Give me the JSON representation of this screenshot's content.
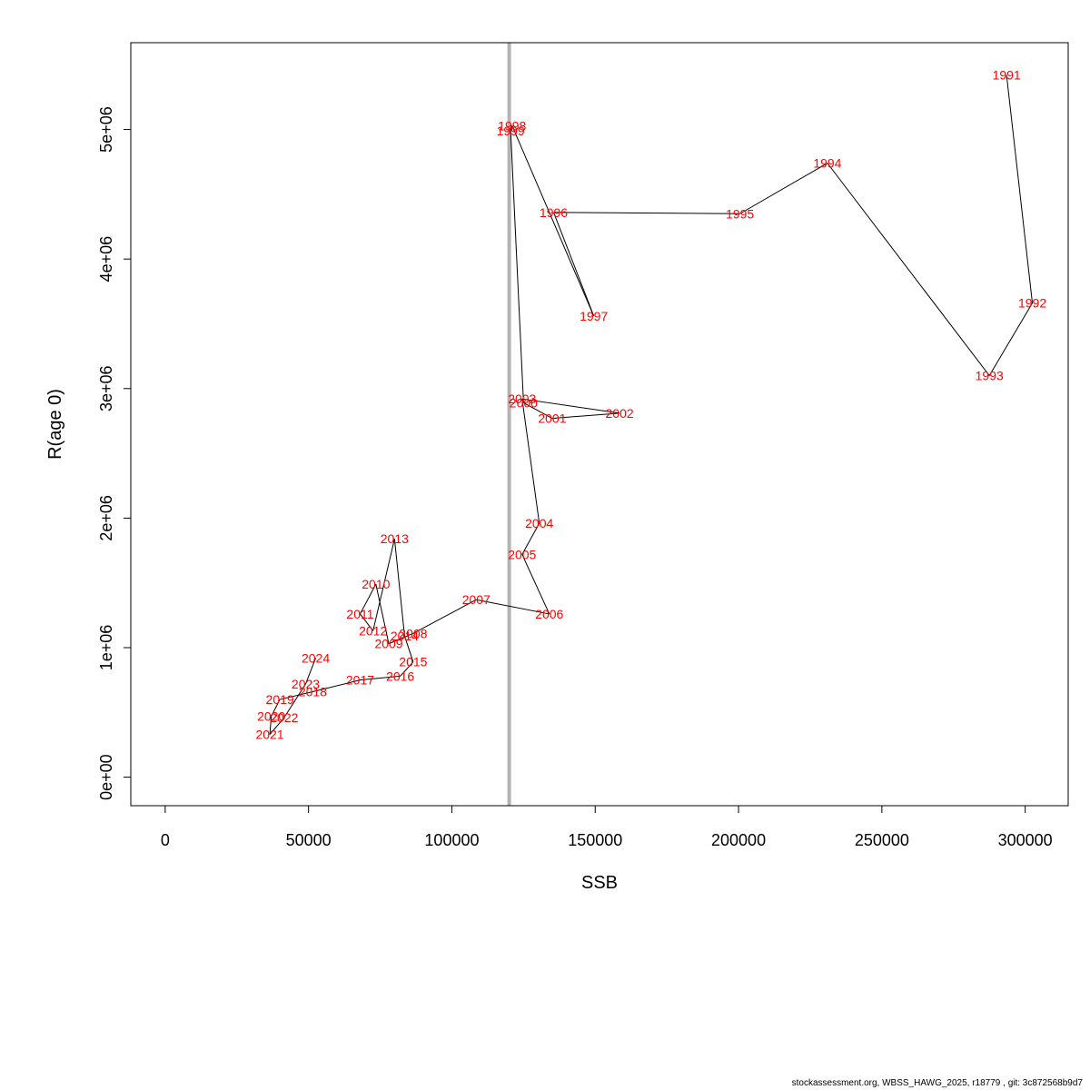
{
  "chart_data": {
    "type": "line",
    "title": "",
    "xlabel": "SSB",
    "ylabel": "R(age 0)",
    "xlim": [
      -12000,
      315000
    ],
    "ylim": [
      -220000,
      5670000
    ],
    "x_ticks": [
      0,
      50000,
      100000,
      150000,
      200000,
      250000,
      300000
    ],
    "x_tick_labels": [
      "0",
      "50000",
      "100000",
      "150000",
      "200000",
      "250000",
      "300000"
    ],
    "y_ticks": [
      0,
      1000000,
      2000000,
      3000000,
      4000000,
      5000000
    ],
    "y_tick_labels": [
      "0e+00",
      "1e+06",
      "2e+06",
      "3e+06",
      "4e+06",
      "5e+06"
    ],
    "reference_line": {
      "x": 120000,
      "color": "#b3b3b3"
    },
    "line_color": "#000000",
    "label_color": "#ff0000",
    "grid": false,
    "points": [
      {
        "year": "1991",
        "x": 293500,
        "y": 5420000
      },
      {
        "year": "1992",
        "x": 302500,
        "y": 3660000
      },
      {
        "year": "1993",
        "x": 287500,
        "y": 3100000
      },
      {
        "year": "1994",
        "x": 231000,
        "y": 4740000
      },
      {
        "year": "1995",
        "x": 200500,
        "y": 4350000
      },
      {
        "year": "1996",
        "x": 135500,
        "y": 4360000
      },
      {
        "year": "1997",
        "x": 149500,
        "y": 3560000
      },
      {
        "year": "1998",
        "x": 121000,
        "y": 5030000
      },
      {
        "year": "1999",
        "x": 120500,
        "y": 4990000
      },
      {
        "year": "2000",
        "x": 125000,
        "y": 2890000
      },
      {
        "year": "2001",
        "x": 135000,
        "y": 2770000
      },
      {
        "year": "2002",
        "x": 158500,
        "y": 2810000
      },
      {
        "year": "2003",
        "x": 124500,
        "y": 2920000
      },
      {
        "year": "2004",
        "x": 130500,
        "y": 1960000
      },
      {
        "year": "2005",
        "x": 124500,
        "y": 1720000
      },
      {
        "year": "2006",
        "x": 134000,
        "y": 1260000
      },
      {
        "year": "2007",
        "x": 108500,
        "y": 1370000
      },
      {
        "year": "2008",
        "x": 86500,
        "y": 1110000
      },
      {
        "year": "2009",
        "x": 78000,
        "y": 1030000
      },
      {
        "year": "2010",
        "x": 73500,
        "y": 1490000
      },
      {
        "year": "2011",
        "x": 68000,
        "y": 1260000
      },
      {
        "year": "2012",
        "x": 72500,
        "y": 1130000
      },
      {
        "year": "2013",
        "x": 80000,
        "y": 1840000
      },
      {
        "year": "2014",
        "x": 83500,
        "y": 1090000
      },
      {
        "year": "2015",
        "x": 86500,
        "y": 890000
      },
      {
        "year": "2016",
        "x": 82000,
        "y": 780000
      },
      {
        "year": "2017",
        "x": 68000,
        "y": 750000
      },
      {
        "year": "2018",
        "x": 51500,
        "y": 660000
      },
      {
        "year": "2019",
        "x": 40000,
        "y": 600000
      },
      {
        "year": "2020",
        "x": 37000,
        "y": 470000
      },
      {
        "year": "2021",
        "x": 36500,
        "y": 330000
      },
      {
        "year": "2022",
        "x": 41500,
        "y": 460000
      },
      {
        "year": "2023",
        "x": 49000,
        "y": 720000
      },
      {
        "year": "2024",
        "x": 52500,
        "y": 920000
      }
    ]
  },
  "footer": {
    "text": "stockassessment.org, WBSS_HAWG_2025, r18779 , git: 3c872568b9d7"
  }
}
